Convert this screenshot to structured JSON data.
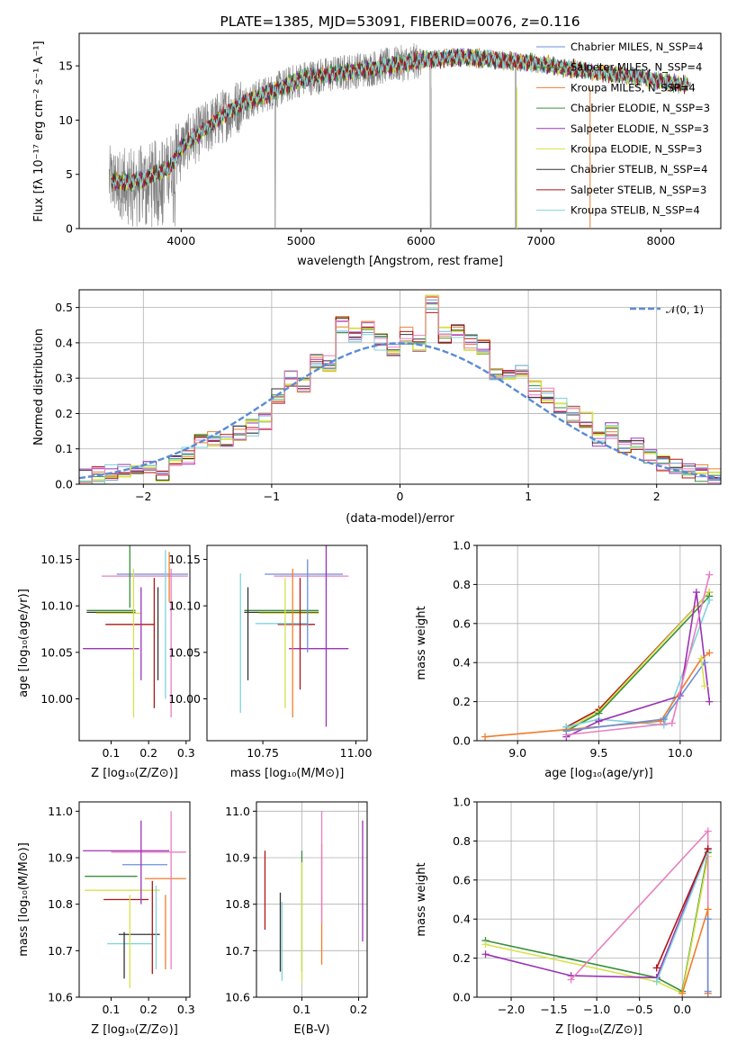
{
  "chart_data": [
    {
      "type": "line",
      "title": "PLATE=1385, MJD=53091, FIBERID=0076, z=0.116",
      "xlabel": "wavelength [Angstrom, rest frame]",
      "ylabel": "Flux [fλ 10⁻¹⁷ erg cm⁻² s⁻¹ A⁻¹]",
      "xlim": [
        3150,
        8500
      ],
      "ylim": [
        0,
        18
      ],
      "xticks": [
        "4000",
        "5000",
        "6000",
        "7000",
        "8000"
      ],
      "yticks": [
        "0",
        "5",
        "10",
        "15"
      ],
      "grid": false,
      "legend_position": "top-right",
      "continuum": {
        "x": [
          3400,
          3500,
          3700,
          3900,
          4000,
          4300,
          4500,
          4800,
          5000,
          5300,
          5600,
          6000,
          6300,
          6600,
          7000,
          7400,
          7800,
          8200
        ],
        "y": [
          4.5,
          4.2,
          4.6,
          5.5,
          7.5,
          10.0,
          11.5,
          12.8,
          13.8,
          14.3,
          14.8,
          15.5,
          15.8,
          15.6,
          15.2,
          14.5,
          14.0,
          13.2
        ]
      },
      "series": [
        {
          "name": "Chabrier MILES, N_SSP=4",
          "color": "#6b8fd6"
        },
        {
          "name": "Salpeter MILES, N_SSP=4",
          "color": "#3a8f3a"
        },
        {
          "name": "Kroupa MILES, N_SSP=4",
          "color": "#ef7d2b"
        },
        {
          "name": "Chabrier ELODIE, N_SSP=3",
          "color": "#3a8f3a"
        },
        {
          "name": "Salpeter ELODIE, N_SSP=3",
          "color": "#9b33b5"
        },
        {
          "name": "Kroupa ELODIE, N_SSP=3",
          "color": "#d6e24a"
        },
        {
          "name": "Chabrier STELIB, N_SSP=4",
          "color": "#333333"
        },
        {
          "name": "Salpeter STELIB, N_SSP=3",
          "color": "#b01515"
        },
        {
          "name": "Kroupa STELIB, N_SSP=4",
          "color": "#7fd3dc"
        }
      ]
    },
    {
      "type": "line",
      "xlabel": "(data-model)/error",
      "ylabel": "Normed distribution",
      "xlim": [
        -2.5,
        2.5
      ],
      "ylim": [
        0,
        0.55
      ],
      "xticks": [
        "−2",
        "−1",
        "0",
        "1",
        "2"
      ],
      "yticks": [
        "0.0",
        "0.1",
        "0.2",
        "0.3",
        "0.4",
        "0.5"
      ],
      "grid": true,
      "legend_position": "top-right",
      "legend_label": "𝒩(0, 1)",
      "gaussian": {
        "mean": 0,
        "sigma": 1,
        "color": "#5b8bd6"
      },
      "hist_x": [
        -2.5,
        -2.4,
        -2.3,
        -2.2,
        -2.1,
        -2.0,
        -1.9,
        -1.8,
        -1.7,
        -1.6,
        -1.5,
        -1.4,
        -1.3,
        -1.2,
        -1.1,
        -1.0,
        -0.9,
        -0.8,
        -0.7,
        -0.6,
        -0.5,
        -0.4,
        -0.3,
        -0.2,
        -0.1,
        0.0,
        0.1,
        0.2,
        0.3,
        0.4,
        0.5,
        0.6,
        0.7,
        0.8,
        0.9,
        1.0,
        1.1,
        1.2,
        1.3,
        1.4,
        1.5,
        1.6,
        1.7,
        1.8,
        1.9,
        2.0,
        2.1,
        2.2,
        2.3,
        2.4
      ],
      "hist_y": [
        0.02,
        0.025,
        0.03,
        0.04,
        0.045,
        0.05,
        0.03,
        0.06,
        0.08,
        0.12,
        0.13,
        0.12,
        0.14,
        0.16,
        0.18,
        0.25,
        0.3,
        0.28,
        0.35,
        0.34,
        0.45,
        0.42,
        0.44,
        0.4,
        0.38,
        0.42,
        0.4,
        0.51,
        0.42,
        0.44,
        0.4,
        0.39,
        0.32,
        0.3,
        0.33,
        0.27,
        0.25,
        0.22,
        0.2,
        0.18,
        0.13,
        0.15,
        0.1,
        0.11,
        0.08,
        0.06,
        0.05,
        0.04,
        0.03,
        0.02
      ],
      "series_colors": [
        "#6b8fd6",
        "#3a8f3a",
        "#ef7d2b",
        "#9b33b5",
        "#d6e24a",
        "#333333",
        "#b01515",
        "#7fd3dc",
        "#e87fc1"
      ]
    },
    {
      "type": "scatter",
      "xlabel": "Z [log₁₀(Z/Z⊙)]",
      "ylabel": "age  [log₁₀(age/yr)]",
      "xlim": [
        0.015,
        0.31
      ],
      "ylim": [
        9.955,
        10.165
      ],
      "xticks": [
        "0.1",
        "0.2",
        "0.3"
      ],
      "yticks": [
        "10.00",
        "10.05",
        "10.10",
        "10.15"
      ],
      "grid": false,
      "points": [
        {
          "x": 0.21,
          "y": 10.134,
          "xerr": 0.095,
          "yerr": 0.0,
          "color": "#6b8fd6"
        },
        {
          "x": 0.19,
          "y": 10.132,
          "xerr": 0.115,
          "yerr": 0.0,
          "color": "#e87fc1"
        },
        {
          "x": 0.255,
          "y": 10.131,
          "xerr": 0.0,
          "yerr": 0.027,
          "color": "#ef7d2b"
        },
        {
          "x": 0.15,
          "y": 10.148,
          "xerr": 0.0,
          "yerr": 0.05,
          "color": "#3a8f3a"
        },
        {
          "x": 0.1,
          "y": 10.095,
          "xerr": 0.065,
          "yerr": 0.0,
          "color": "#3a8f3a"
        },
        {
          "x": 0.1,
          "y": 10.093,
          "xerr": 0.065,
          "yerr": 0.0,
          "color": "#333333"
        },
        {
          "x": 0.12,
          "y": 10.092,
          "xerr": 0.06,
          "yerr": 0.0,
          "color": "#d6e24a"
        },
        {
          "x": 0.15,
          "y": 10.08,
          "xerr": 0.065,
          "yerr": 0.0,
          "color": "#b01515"
        },
        {
          "x": 0.1,
          "y": 10.054,
          "xerr": 0.075,
          "yerr": 0.0,
          "color": "#9b33b5"
        },
        {
          "x": 0.225,
          "y": 10.07,
          "xerr": 0.0,
          "yerr": 0.05,
          "color": "#333333"
        },
        {
          "x": 0.18,
          "y": 10.07,
          "xerr": 0.0,
          "yerr": 0.05,
          "color": "#9b33b5"
        },
        {
          "x": 0.26,
          "y": 10.06,
          "xerr": 0.0,
          "yerr": 0.08,
          "color": "#e87fc1"
        },
        {
          "x": 0.16,
          "y": 10.06,
          "xerr": 0.0,
          "yerr": 0.08,
          "color": "#d6e24a"
        },
        {
          "x": 0.215,
          "y": 10.06,
          "xerr": 0.0,
          "yerr": 0.07,
          "color": "#b01515"
        },
        {
          "x": 0.245,
          "y": 10.08,
          "xerr": 0.0,
          "yerr": 0.08,
          "color": "#7fd3dc"
        }
      ]
    },
    {
      "type": "scatter",
      "xlabel": "mass [log₁₀(M/M⊙)]",
      "ylabel": "",
      "xlim": [
        10.6,
        11.03
      ],
      "ylim": [
        9.955,
        10.165
      ],
      "xticks": [
        "10.75",
        "11.00"
      ],
      "yticks": [
        "10.00",
        "10.05",
        "10.10",
        "10.15"
      ],
      "grid": false,
      "points": [
        {
          "x": 10.86,
          "y": 10.134,
          "xerr": 0.105,
          "yerr": 0.0,
          "color": "#6b8fd6"
        },
        {
          "x": 10.88,
          "y": 10.132,
          "xerr": 0.1,
          "yerr": 0.0,
          "color": "#e87fc1"
        },
        {
          "x": 10.8,
          "y": 10.095,
          "xerr": 0.1,
          "yerr": 0.0,
          "color": "#3a8f3a"
        },
        {
          "x": 10.8,
          "y": 10.093,
          "xerr": 0.1,
          "yerr": 0.0,
          "color": "#333333"
        },
        {
          "x": 10.82,
          "y": 10.092,
          "xerr": 0.08,
          "yerr": 0.0,
          "color": "#d6e24a"
        },
        {
          "x": 10.84,
          "y": 10.08,
          "xerr": 0.05,
          "yerr": 0.0,
          "color": "#b01515"
        },
        {
          "x": 10.8,
          "y": 10.081,
          "xerr": 0.07,
          "yerr": 0.0,
          "color": "#7fd3dc"
        },
        {
          "x": 10.9,
          "y": 10.054,
          "xerr": 0.08,
          "yerr": 0.0,
          "color": "#9b33b5"
        },
        {
          "x": 10.71,
          "y": 10.07,
          "xerr": 0.0,
          "yerr": 0.05,
          "color": "#333333"
        },
        {
          "x": 10.69,
          "y": 10.06,
          "xerr": 0.0,
          "yerr": 0.075,
          "color": "#7fd3dc"
        },
        {
          "x": 10.81,
          "y": 10.06,
          "xerr": 0.0,
          "yerr": 0.07,
          "color": "#d6e24a"
        },
        {
          "x": 10.85,
          "y": 10.07,
          "xerr": 0.0,
          "yerr": 0.06,
          "color": "#b01515"
        },
        {
          "x": 10.87,
          "y": 10.1,
          "xerr": 0.0,
          "yerr": 0.05,
          "color": "#6b8fd6"
        },
        {
          "x": 10.92,
          "y": 10.07,
          "xerr": 0.0,
          "yerr": 0.1,
          "color": "#9b33b5"
        },
        {
          "x": 10.83,
          "y": 10.06,
          "xerr": 0.0,
          "yerr": 0.08,
          "color": "#ef7d2b"
        }
      ]
    },
    {
      "type": "line",
      "xlabel": "age  [log₁₀(age/yr)]",
      "ylabel": "mass weight",
      "xlim": [
        8.75,
        10.25
      ],
      "ylim": [
        0,
        1
      ],
      "xticks": [
        "9.0",
        "9.5",
        "10.0"
      ],
      "yticks": [
        "0.0",
        "0.2",
        "0.4",
        "0.6",
        "0.8",
        "1.0"
      ],
      "grid": true,
      "series": [
        {
          "color": "#b01515",
          "x": [
            9.3,
            9.5,
            10.18
          ],
          "y": [
            0.07,
            0.16,
            0.76
          ]
        },
        {
          "color": "#d6e24a",
          "x": [
            9.3,
            9.5,
            10.18
          ],
          "y": [
            0.06,
            0.15,
            0.76
          ]
        },
        {
          "color": "#3a8f3a",
          "x": [
            9.3,
            9.5,
            10.18
          ],
          "y": [
            0.05,
            0.14,
            0.74
          ]
        },
        {
          "color": "#7fd3dc",
          "x": [
            9.3,
            9.5,
            9.9,
            10.18
          ],
          "y": [
            0.07,
            0.11,
            0.08,
            0.72
          ]
        },
        {
          "color": "#9b33b5",
          "x": [
            9.3,
            9.5,
            10.0,
            10.1,
            10.18
          ],
          "y": [
            0.02,
            0.1,
            0.23,
            0.76,
            0.2
          ]
        },
        {
          "color": "#ef7d2b",
          "x": [
            8.8,
            9.88,
            10.13,
            10.18
          ],
          "y": [
            0.02,
            0.1,
            0.42,
            0.45
          ]
        },
        {
          "color": "#e87fc1",
          "x": [
            9.3,
            9.95,
            10.18
          ],
          "y": [
            0.03,
            0.09,
            0.85
          ]
        },
        {
          "color": "#6b8fd6",
          "x": [
            9.3,
            9.9,
            10.15
          ],
          "y": [
            0.05,
            0.11,
            0.4
          ]
        },
        {
          "color": "#d6e24a",
          "x": [
            10.13,
            10.15
          ],
          "y": [
            0.42,
            0.28
          ]
        }
      ]
    },
    {
      "type": "scatter",
      "xlabel": "Z [log₁₀(Z/Z⊙)]",
      "ylabel": "mass [log₁₀(M/M⊙)]",
      "xlim": [
        0.015,
        0.31
      ],
      "ylim": [
        10.6,
        11.02
      ],
      "xticks": [
        "0.1",
        "0.2",
        "0.3"
      ],
      "yticks": [
        "10.6",
        "10.7",
        "10.8",
        "10.9",
        "11.0"
      ],
      "grid": false,
      "points": [
        {
          "x": 0.14,
          "y": 10.915,
          "xerr": 0.115,
          "yerr": 0.0,
          "color": "#9b33b5"
        },
        {
          "x": 0.2,
          "y": 10.912,
          "xerr": 0.1,
          "yerr": 0.0,
          "color": "#e87fc1"
        },
        {
          "x": 0.19,
          "y": 10.885,
          "xerr": 0.06,
          "yerr": 0.0,
          "color": "#6b8fd6"
        },
        {
          "x": 0.1,
          "y": 10.86,
          "xerr": 0.07,
          "yerr": 0.0,
          "color": "#3a8f3a"
        },
        {
          "x": 0.245,
          "y": 10.855,
          "xerr": 0.055,
          "yerr": 0.0,
          "color": "#ef7d2b"
        },
        {
          "x": 0.13,
          "y": 10.83,
          "xerr": 0.1,
          "yerr": 0.0,
          "color": "#d6e24a"
        },
        {
          "x": 0.14,
          "y": 10.81,
          "xerr": 0.06,
          "yerr": 0.0,
          "color": "#b01515"
        },
        {
          "x": 0.175,
          "y": 10.735,
          "xerr": 0.055,
          "yerr": 0.0,
          "color": "#333333"
        },
        {
          "x": 0.15,
          "y": 10.715,
          "xerr": 0.06,
          "yerr": 0.0,
          "color": "#7fd3dc"
        },
        {
          "x": 0.18,
          "y": 10.89,
          "xerr": 0.0,
          "yerr": 0.09,
          "color": "#9b33b5"
        },
        {
          "x": 0.15,
          "y": 10.72,
          "xerr": 0.0,
          "yerr": 0.1,
          "color": "#d6e24a"
        },
        {
          "x": 0.21,
          "y": 10.75,
          "xerr": 0.0,
          "yerr": 0.1,
          "color": "#b01515"
        },
        {
          "x": 0.22,
          "y": 10.75,
          "xerr": 0.0,
          "yerr": 0.09,
          "color": "#7fd3dc"
        },
        {
          "x": 0.245,
          "y": 10.74,
          "xerr": 0.0,
          "yerr": 0.08,
          "color": "#ef7d2b"
        },
        {
          "x": 0.26,
          "y": 10.83,
          "xerr": 0.0,
          "yerr": 0.17,
          "color": "#e87fc1"
        },
        {
          "x": 0.135,
          "y": 10.69,
          "xerr": 0.0,
          "yerr": 0.05,
          "color": "#333333"
        }
      ]
    },
    {
      "type": "scatter",
      "xlabel": "E(B-V)",
      "ylabel": "",
      "xlim": [
        0.02,
        0.215
      ],
      "ylim": [
        10.6,
        11.02
      ],
      "xticks": [
        "0.1",
        "0.2"
      ],
      "yticks": [
        "10.6",
        "10.7",
        "10.8",
        "10.9",
        "11.0"
      ],
      "grid": true,
      "points": [
        {
          "x": 0.035,
          "y": 10.83,
          "xerr": 0.0,
          "yerr": 0.085,
          "color": "#b01515"
        },
        {
          "x": 0.062,
          "y": 10.74,
          "xerr": 0.0,
          "yerr": 0.085,
          "color": "#333333"
        },
        {
          "x": 0.065,
          "y": 10.72,
          "xerr": 0.0,
          "yerr": 0.085,
          "color": "#7fd3dc"
        },
        {
          "x": 0.1,
          "y": 10.785,
          "xerr": 0.0,
          "yerr": 0.13,
          "color": "#3a8f3a"
        },
        {
          "x": 0.1,
          "y": 10.76,
          "xerr": 0.0,
          "yerr": 0.13,
          "color": "#d6e24a"
        },
        {
          "x": 0.135,
          "y": 10.8,
          "xerr": 0.0,
          "yerr": 0.13,
          "color": "#ef7d2b"
        },
        {
          "x": 0.135,
          "y": 10.88,
          "xerr": 0.0,
          "yerr": 0.12,
          "color": "#e87fc1"
        },
        {
          "x": 0.207,
          "y": 10.85,
          "xerr": 0.0,
          "yerr": 0.13,
          "color": "#9b33b5"
        }
      ]
    },
    {
      "type": "line",
      "xlabel": "Z [log₁₀(Z/Z⊙)]",
      "ylabel": "mass weight",
      "xlim": [
        -2.4,
        0.45
      ],
      "ylim": [
        0,
        1
      ],
      "xticks": [
        "−2.0",
        "−1.5",
        "−1.0",
        "−0.5",
        "0.0"
      ],
      "yticks": [
        "0.0",
        "0.2",
        "0.4",
        "0.6",
        "0.8",
        "1.0"
      ],
      "grid": true,
      "series": [
        {
          "color": "#3a8f3a",
          "x": [
            -2.3,
            -0.3,
            0.0,
            0.3
          ],
          "y": [
            0.29,
            0.1,
            0.03,
            0.74
          ]
        },
        {
          "color": "#d6e24a",
          "x": [
            -2.3,
            -0.3,
            0.0,
            0.3
          ],
          "y": [
            0.27,
            0.08,
            0.02,
            0.72
          ]
        },
        {
          "color": "#9b33b5",
          "x": [
            -2.3,
            -1.3,
            -0.3,
            0.3
          ],
          "y": [
            0.22,
            0.11,
            0.1,
            0.76
          ]
        },
        {
          "color": "#e87fc1",
          "x": [
            -1.3,
            0.3,
            0.3
          ],
          "y": [
            0.09,
            0.85,
            0.02
          ]
        },
        {
          "color": "#7fd3dc",
          "x": [
            -0.3,
            0.3
          ],
          "y": [
            0.08,
            0.75
          ]
        },
        {
          "color": "#b01515",
          "x": [
            -0.3,
            0.3
          ],
          "y": [
            0.15,
            0.76
          ]
        },
        {
          "color": "#ef7d2b",
          "x": [
            0.0,
            0.3,
            0.3
          ],
          "y": [
            0.02,
            0.45,
            0.02
          ]
        },
        {
          "color": "#6b8fd6",
          "x": [
            0.3,
            0.3
          ],
          "y": [
            0.03,
            0.4
          ]
        }
      ]
    }
  ]
}
